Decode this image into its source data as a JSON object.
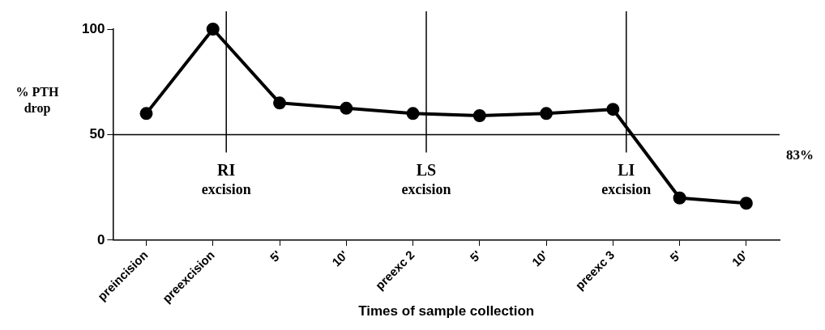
{
  "chart_data": {
    "type": "line",
    "xlabel": "Times of sample collection",
    "ylabel": "% PTH\ndrop",
    "categories": [
      "preincision",
      "preexcision",
      "5'",
      "10'",
      "preexc 2",
      "5'",
      "10'",
      "preexc 3",
      "5'",
      "10'"
    ],
    "series": [
      {
        "color": "#000000",
        "values": [
          60,
          100,
          65,
          62.5,
          60,
          59,
          60,
          62,
          20,
          17.5
        ]
      }
    ],
    "ylim": [
      0,
      100
    ],
    "yticks": [
      0,
      50,
      100
    ],
    "grid": false,
    "legend": false,
    "marker": "circle",
    "line_style": "solid",
    "ref_lines": [
      {
        "axis": "y",
        "value": 50,
        "color": "#000000"
      },
      {
        "axis": "x",
        "value": "preexcision",
        "label": "RI\nexcision",
        "color": "#000000"
      },
      {
        "axis": "x",
        "value": "preexc 2",
        "label": "LS\nexcision",
        "color": "#000000"
      },
      {
        "axis": "x",
        "value": "preexc 3",
        "label": "LI\nexcision",
        "color": "#000000"
      }
    ],
    "annotations": [
      "83%"
    ]
  }
}
